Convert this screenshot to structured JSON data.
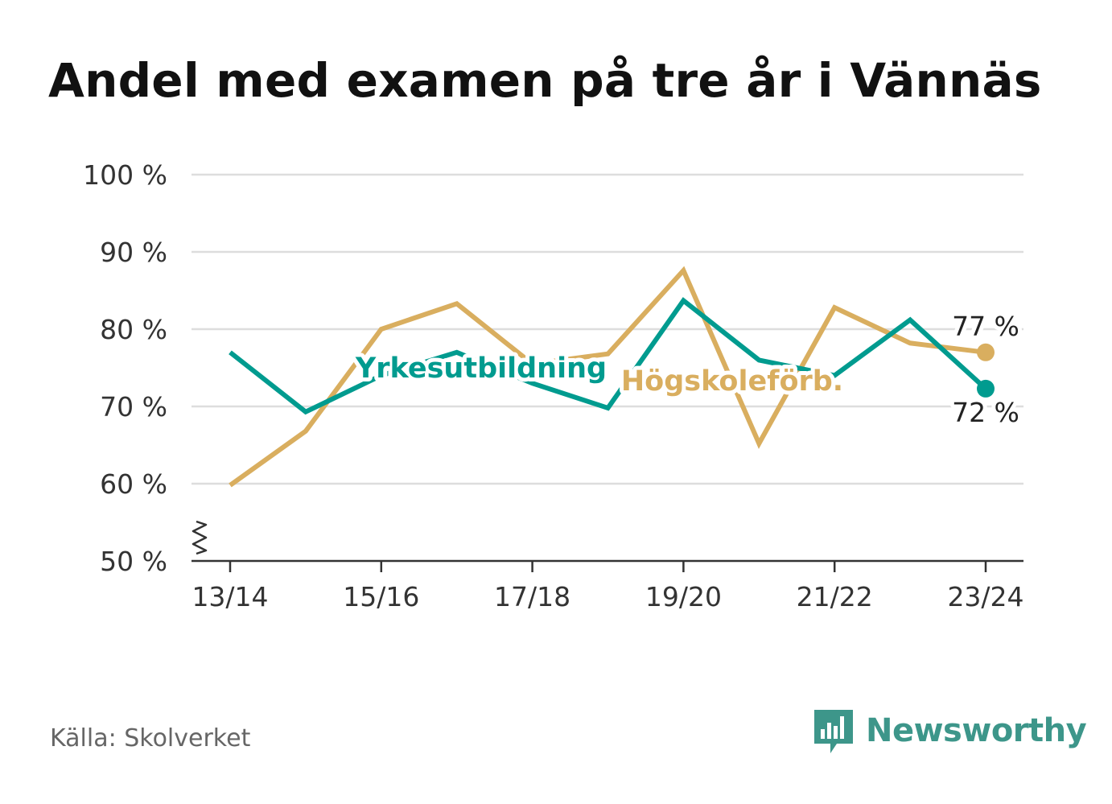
{
  "title": "Andel med examen på tre år i Vännäs",
  "source": "Källa: Skolverket",
  "brand": {
    "name": "Newsworthy",
    "icon": "newsworthy-logo-icon",
    "color": "#3d968a"
  },
  "colors": {
    "yrkes": "#009b8f",
    "hogskole": "#d9ae5f",
    "grid": "#dddddd",
    "axis": "#333333",
    "text": "#333333"
  },
  "chart_data": {
    "type": "line",
    "x": [
      "13/14",
      "14/15",
      "15/16",
      "16/17",
      "17/18",
      "18/19",
      "19/20",
      "20/21",
      "21/22",
      "22/23",
      "23/24"
    ],
    "xticks": [
      "13/14",
      "15/16",
      "17/18",
      "19/20",
      "21/22",
      "23/24"
    ],
    "yticks": [
      50,
      60,
      70,
      80,
      90,
      100
    ],
    "ytick_labels": [
      "50 %",
      "60 %",
      "70 %",
      "80 %",
      "90 %",
      "100 %"
    ],
    "ylim": [
      50,
      100
    ],
    "axis_break": true,
    "grid": true,
    "series": [
      {
        "name": "Yrkesutbildning",
        "color": "#009b8f",
        "values": [
          77,
          69.3,
          74,
          77,
          73,
          69.8,
          83.7,
          76,
          74,
          81.2,
          72.3
        ],
        "end_label": "72 %"
      },
      {
        "name": "Högskoleförb.",
        "color": "#d9ae5f",
        "values": [
          59.8,
          66.8,
          80,
          83.3,
          75.5,
          76.8,
          87.6,
          65.2,
          82.8,
          78.2,
          77
        ],
        "end_label": "77 %"
      }
    ]
  }
}
